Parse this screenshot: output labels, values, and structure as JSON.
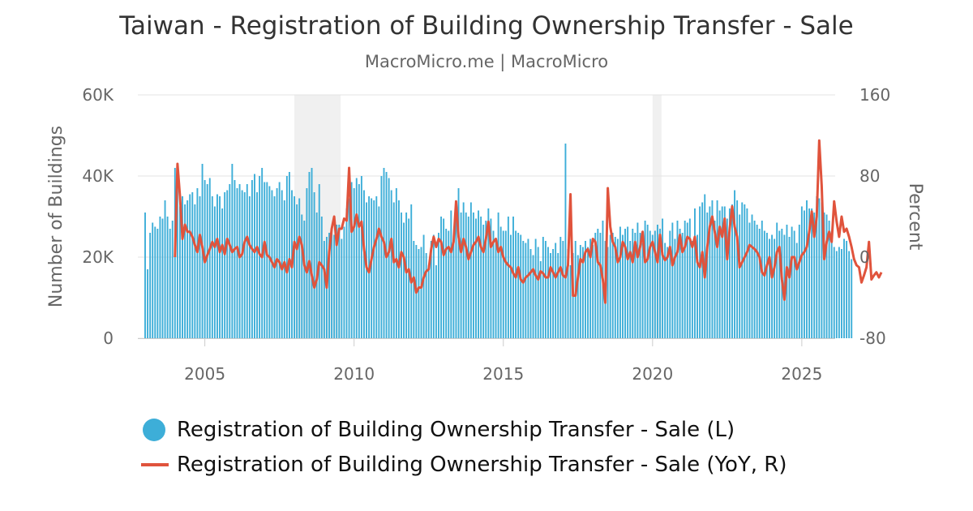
{
  "title": "Taiwan - Registration of Building Ownership Transfer - Sale",
  "subtitle": "MacroMicro.me | MacroMicro",
  "colors": {
    "bars": "#3daed8",
    "line": "#e0533c",
    "recession": "#f0f0f0",
    "grid": "#e3e3e3"
  },
  "chart_data": {
    "type": "bar",
    "title": "Taiwan - Registration of Building Ownership Transfer - Sale",
    "subtitle": "MacroMicro.me | MacroMicro",
    "ylabel_left": "Number of Buildings",
    "ylabel_right": "Percent",
    "left_axis": {
      "ylim": [
        0,
        60000
      ],
      "ticks": [
        0,
        20000,
        40000,
        60000
      ],
      "tick_labels": [
        "0",
        "20K",
        "40K",
        "60K"
      ]
    },
    "right_axis": {
      "ylim": [
        -80,
        160
      ],
      "ticks": [
        -80,
        0,
        80,
        160
      ],
      "tick_labels": [
        "-80",
        "0",
        "80",
        "160"
      ]
    },
    "x_axis": {
      "range": [
        2003.0,
        2025.9
      ],
      "ticks": [
        2005,
        2010,
        2015,
        2020,
        2025
      ],
      "tick_labels": [
        "2005",
        "2010",
        "2015",
        "2020",
        "2025"
      ]
    },
    "grid": true,
    "legend_position": "bottom",
    "shaded_periods": [
      [
        2008.0,
        2009.55
      ],
      [
        2020.0,
        2020.3
      ]
    ],
    "series": [
      {
        "name": "Registration of Building Ownership Transfer - Sale (L)",
        "type": "bar",
        "axis": "left",
        "start": "2003-01",
        "frequency": "monthly",
        "values": [
          31000,
          17000,
          26000,
          28500,
          27500,
          27000,
          30000,
          29500,
          34000,
          30000,
          27000,
          29000,
          42000,
          39000,
          32500,
          35000,
          33000,
          34000,
          35500,
          36000,
          33000,
          37000,
          35000,
          43000,
          39000,
          38000,
          39500,
          35000,
          32500,
          35500,
          35000,
          32000,
          36000,
          36500,
          38000,
          43000,
          39000,
          37000,
          38000,
          36500,
          36000,
          38000,
          35000,
          39000,
          40500,
          36000,
          40000,
          42000,
          38500,
          38500,
          37500,
          36500,
          35000,
          37000,
          38500,
          36500,
          34000,
          40000,
          41000,
          36500,
          35000,
          33000,
          34500,
          30500,
          29000,
          37000,
          41000,
          42000,
          36000,
          31000,
          38000,
          30000,
          24000,
          25000,
          26000,
          26500,
          25500,
          28000,
          28000,
          24500,
          27500,
          32000,
          34500,
          38500,
          37000,
          39500,
          38000,
          40000,
          36500,
          33500,
          35000,
          34500,
          34000,
          35000,
          32500,
          40000,
          42000,
          41000,
          39500,
          36500,
          33500,
          37000,
          34000,
          31000,
          28500,
          31000,
          29500,
          33000,
          24000,
          23000,
          22000,
          22500,
          25500,
          21000,
          18000,
          24000,
          25500,
          18000,
          26000,
          30000,
          29500,
          27000,
          26500,
          31500,
          25500,
          32000,
          37000,
          31000,
          33500,
          31000,
          30000,
          33500,
          31000,
          29500,
          31500,
          30000,
          28000,
          29000,
          32000,
          29500,
          26500,
          24500,
          31000,
          27500,
          26500,
          26500,
          30000,
          25500,
          30000,
          26500,
          26000,
          25500,
          24000,
          23500,
          24500,
          22000,
          20500,
          24500,
          22500,
          19000,
          25000,
          24000,
          22500,
          21000,
          22000,
          23500,
          21000,
          25000,
          24000,
          48000,
          22000,
          18000,
          21000,
          24000,
          20500,
          23000,
          22500,
          24000,
          22500,
          24500,
          23000,
          26000,
          27000,
          26000,
          29000,
          24000,
          22500,
          25500,
          26000,
          25000,
          24500,
          27500,
          25500,
          27000,
          27500,
          24000,
          27000,
          26000,
          28500,
          26000,
          23500,
          29000,
          28000,
          26500,
          25500,
          26500,
          28000,
          27000,
          29500,
          23500,
          22500,
          26500,
          28500,
          24500,
          29000,
          27000,
          26000,
          29000,
          28500,
          29500,
          24000,
          32000,
          25500,
          32500,
          33500,
          35500,
          31000,
          32500,
          34000,
          29000,
          34000,
          31500,
          32500,
          32500,
          29500,
          32000,
          33000,
          36500,
          34000,
          30500,
          33500,
          33000,
          32000,
          28500,
          30500,
          29000,
          28000,
          27000,
          29000,
          26500,
          26000,
          24500,
          25500,
          24500,
          28500,
          26500,
          27000,
          25500,
          28000,
          25000,
          27500,
          26500,
          23500,
          28000,
          32500,
          31500,
          34000,
          32000,
          32000,
          31000,
          35000,
          34500,
          33500,
          31000,
          30500,
          29000,
          26500,
          22500,
          21500,
          22500,
          22000,
          24500,
          24000,
          21500,
          19500
        ]
      },
      {
        "name": "Registration of Building Ownership Transfer - Sale (YoY, R)",
        "type": "line",
        "axis": "right",
        "start": "2004-01",
        "frequency": "monthly",
        "values": [
          0,
          92,
          60,
          18,
          32,
          25,
          25,
          20,
          12,
          5,
          22,
          10,
          -5,
          2,
          8,
          15,
          10,
          18,
          5,
          12,
          3,
          18,
          12,
          5,
          8,
          10,
          0,
          3,
          15,
          20,
          12,
          8,
          5,
          10,
          3,
          0,
          15,
          2,
          0,
          -5,
          -10,
          -2,
          -5,
          -12,
          -5,
          -15,
          -2,
          -10,
          15,
          8,
          20,
          12,
          -8,
          -15,
          -4,
          -18,
          -30,
          -22,
          -5,
          -8,
          -12,
          -30,
          5,
          28,
          40,
          12,
          28,
          28,
          38,
          36,
          88,
          25,
          30,
          42,
          30,
          35,
          8,
          -10,
          -15,
          -2,
          10,
          18,
          28,
          20,
          15,
          0,
          5,
          18,
          -5,
          -2,
          -10,
          5,
          0,
          -15,
          -12,
          -25,
          -20,
          -35,
          -30,
          -30,
          -20,
          -14,
          -12,
          8,
          20,
          10,
          18,
          15,
          2,
          8,
          10,
          5,
          15,
          55,
          20,
          5,
          18,
          10,
          -2,
          5,
          12,
          15,
          20,
          10,
          5,
          18,
          35,
          10,
          15,
          18,
          5,
          10,
          0,
          -5,
          -8,
          -10,
          -16,
          -20,
          -10,
          -22,
          -25,
          -20,
          -18,
          -15,
          -12,
          -18,
          -22,
          -14,
          -16,
          -20,
          -20,
          -10,
          -15,
          -20,
          -15,
          -10,
          -18,
          -20,
          -8,
          62,
          -38,
          -38,
          -20,
          -2,
          -5,
          5,
          8,
          0,
          18,
          15,
          -5,
          -8,
          -22,
          -45,
          68,
          30,
          15,
          10,
          -5,
          0,
          15,
          10,
          -2,
          5,
          -5,
          15,
          0,
          10,
          25,
          -5,
          -2,
          10,
          15,
          5,
          -5,
          22,
          2,
          -3,
          0,
          10,
          -8,
          0,
          5,
          22,
          5,
          10,
          20,
          18,
          10,
          20,
          -5,
          -10,
          5,
          -20,
          10,
          30,
          40,
          25,
          10,
          30,
          20,
          38,
          -2,
          28,
          50,
          30,
          20,
          -10,
          -5,
          0,
          5,
          12,
          10,
          8,
          5,
          0,
          -15,
          -18,
          -8,
          0,
          -20,
          -10,
          5,
          10,
          -22,
          -42,
          -10,
          -20,
          0,
          0,
          -12,
          -5,
          2,
          5,
          10,
          25,
          45,
          20,
          40,
          115,
          70,
          -2,
          15,
          25,
          15,
          55,
          35,
          20,
          40,
          25,
          28,
          20,
          10,
          -2,
          -8,
          -10,
          -25,
          -18,
          -10,
          15,
          -22,
          -18,
          -15,
          -20,
          -15
        ]
      }
    ]
  },
  "legend": {
    "bars_label": "Registration of Building Ownership Transfer - Sale (L)",
    "line_label": "Registration of Building Ownership Transfer - Sale (YoY, R)"
  }
}
